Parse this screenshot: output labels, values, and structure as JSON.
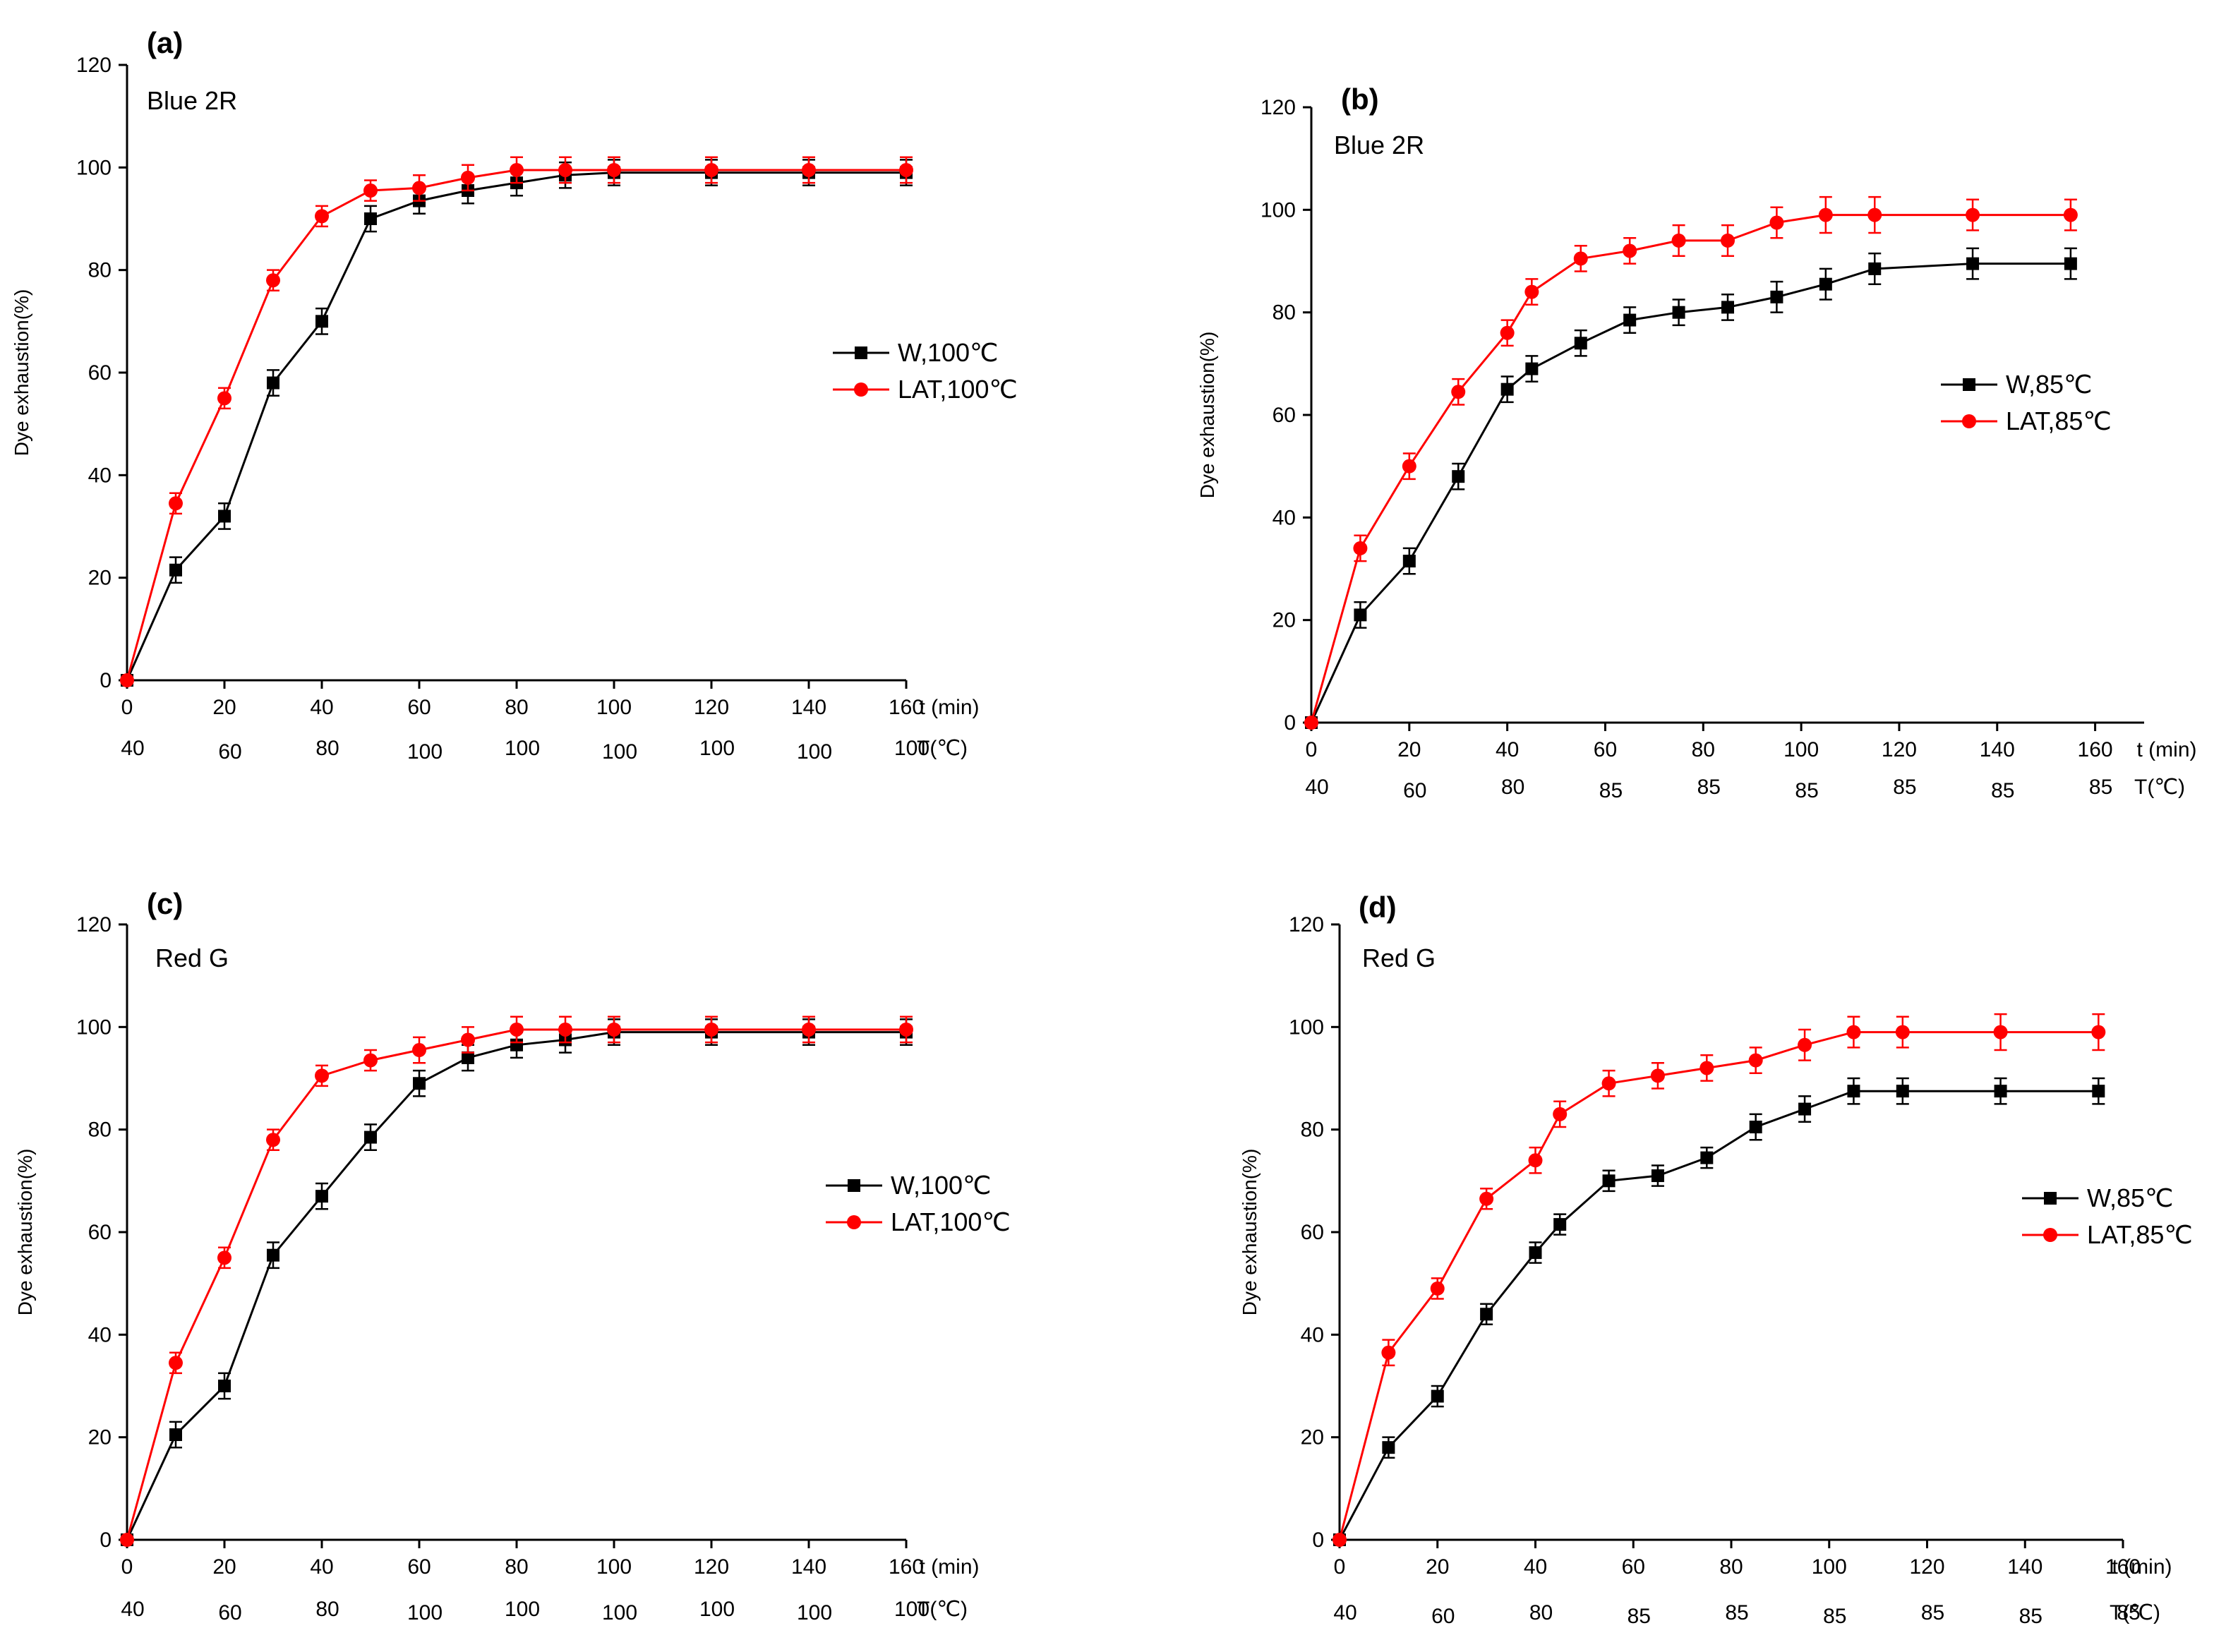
{
  "colors": {
    "W": "#000000",
    "LAT": "#ff0000"
  },
  "chart_data": [
    {
      "type": "line",
      "panel": "(a)",
      "title": "Blue 2R",
      "ylabel": "Dye exhaustion(%)",
      "xlabel": "t (min)",
      "temp_label": "T(℃)",
      "xlim": [
        0,
        160
      ],
      "ylim": [
        0,
        120
      ],
      "xticks": [
        0,
        20,
        40,
        60,
        80,
        100,
        120,
        140,
        160
      ],
      "yticks": [
        0,
        20,
        40,
        60,
        80,
        100,
        120
      ],
      "temp_row": [
        {
          "t": 0,
          "label": "40"
        },
        {
          "t": 20,
          "label": "60"
        },
        {
          "t": 40,
          "label": "80"
        },
        {
          "t": 60,
          "label": "100"
        },
        {
          "t": 80,
          "label": "100"
        },
        {
          "t": 100,
          "label": "100"
        },
        {
          "t": 120,
          "label": "100"
        },
        {
          "t": 140,
          "label": "100"
        },
        {
          "t": 160,
          "label": "100"
        }
      ],
      "legend_position": "right-middle",
      "series": [
        {
          "name": "W,100℃",
          "key": "W",
          "x": [
            0,
            10,
            20,
            30,
            40,
            50,
            60,
            70,
            80,
            90,
            100,
            120,
            140,
            160
          ],
          "y": [
            0,
            21.5,
            32,
            58,
            70,
            90,
            93.5,
            95.5,
            97,
            98.5,
            99,
            99,
            99,
            99
          ],
          "err": [
            0,
            2.5,
            2.5,
            2.5,
            2.5,
            2.5,
            2.5,
            2.5,
            2.5,
            2.5,
            2.5,
            2.5,
            2.5,
            2.5
          ]
        },
        {
          "name": "LAT,100℃",
          "key": "LAT",
          "x": [
            0,
            10,
            20,
            30,
            40,
            50,
            60,
            70,
            80,
            90,
            100,
            120,
            140,
            160
          ],
          "y": [
            0,
            34.5,
            55,
            78,
            90.5,
            95.5,
            96,
            98,
            99.5,
            99.5,
            99.5,
            99.5,
            99.5,
            99.5
          ],
          "err": [
            0,
            2,
            2,
            2,
            2,
            2,
            2.5,
            2.5,
            2.5,
            2.5,
            2.5,
            2.5,
            2.5,
            2.5
          ]
        }
      ]
    },
    {
      "type": "line",
      "panel": "(b)",
      "title": "Blue 2R",
      "ylabel": "Dye exhaustion(%)",
      "xlabel": "t (min)",
      "temp_label": "T(℃)",
      "xlim": [
        0,
        170
      ],
      "ylim": [
        0,
        120
      ],
      "xticks": [
        0,
        20,
        40,
        60,
        80,
        100,
        120,
        140,
        160
      ],
      "yticks": [
        0,
        20,
        40,
        60,
        80,
        100,
        120
      ],
      "temp_row": [
        {
          "t": 0,
          "label": "40"
        },
        {
          "t": 20,
          "label": "60"
        },
        {
          "t": 40,
          "label": "80"
        },
        {
          "t": 60,
          "label": "85"
        },
        {
          "t": 80,
          "label": "85"
        },
        {
          "t": 100,
          "label": "85"
        },
        {
          "t": 120,
          "label": "85"
        },
        {
          "t": 140,
          "label": "85"
        },
        {
          "t": 160,
          "label": "85"
        }
      ],
      "legend_position": "right-middle",
      "series": [
        {
          "name": "W,85℃",
          "key": "W",
          "x": [
            0,
            10,
            20,
            30,
            40,
            45,
            55,
            65,
            75,
            85,
            95,
            105,
            115,
            135,
            155
          ],
          "y": [
            0,
            21,
            31.5,
            48,
            65,
            69,
            74,
            78.5,
            80,
            81,
            83,
            85.5,
            88.5,
            89.5,
            89.5
          ],
          "err": [
            0,
            2.5,
            2.5,
            2.5,
            2.5,
            2.5,
            2.5,
            2.5,
            2.5,
            2.5,
            3,
            3,
            3,
            3,
            3
          ]
        },
        {
          "name": "LAT,85℃",
          "key": "LAT",
          "x": [
            0,
            10,
            20,
            30,
            40,
            45,
            55,
            65,
            75,
            85,
            95,
            105,
            115,
            135,
            155
          ],
          "y": [
            0,
            34,
            50,
            64.5,
            76,
            84,
            90.5,
            92,
            94,
            94,
            97.5,
            99,
            99,
            99,
            99
          ],
          "err": [
            0,
            2.5,
            2.5,
            2.5,
            2.5,
            2.5,
            2.5,
            2.5,
            3,
            3,
            3,
            3.5,
            3.5,
            3,
            3
          ]
        }
      ]
    },
    {
      "type": "line",
      "panel": "(c)",
      "title": "Red G",
      "ylabel": "Dye exhaustion(%)",
      "xlabel": "t (min)",
      "temp_label": "T(℃)",
      "xlim": [
        0,
        160
      ],
      "ylim": [
        0,
        120
      ],
      "xticks": [
        0,
        20,
        40,
        60,
        80,
        100,
        120,
        140,
        160
      ],
      "yticks": [
        0,
        20,
        40,
        60,
        80,
        100,
        120
      ],
      "temp_row": [
        {
          "t": 0,
          "label": "40"
        },
        {
          "t": 20,
          "label": "60"
        },
        {
          "t": 40,
          "label": "80"
        },
        {
          "t": 60,
          "label": "100"
        },
        {
          "t": 80,
          "label": "100"
        },
        {
          "t": 100,
          "label": "100"
        },
        {
          "t": 120,
          "label": "100"
        },
        {
          "t": 140,
          "label": "100"
        },
        {
          "t": 160,
          "label": "100"
        }
      ],
      "legend_position": "right-middle",
      "series": [
        {
          "name": "W,100℃",
          "key": "W",
          "x": [
            0,
            10,
            20,
            30,
            40,
            50,
            60,
            70,
            80,
            90,
            100,
            120,
            140,
            160
          ],
          "y": [
            0,
            20.5,
            30,
            55.5,
            67,
            78.5,
            89,
            94,
            96.5,
            97.5,
            99,
            99,
            99,
            99
          ],
          "err": [
            0,
            2.5,
            2.5,
            2.5,
            2.5,
            2.5,
            2.5,
            2.5,
            2.5,
            2.5,
            2.5,
            2.5,
            2.5,
            2.5
          ]
        },
        {
          "name": "LAT,100℃",
          "key": "LAT",
          "x": [
            0,
            10,
            20,
            30,
            40,
            50,
            60,
            70,
            80,
            90,
            100,
            120,
            140,
            160
          ],
          "y": [
            0,
            34.5,
            55,
            78,
            90.5,
            93.5,
            95.5,
            97.5,
            99.5,
            99.5,
            99.5,
            99.5,
            99.5,
            99.5
          ],
          "err": [
            0,
            2,
            2,
            2,
            2,
            2,
            2.5,
            2.5,
            2.5,
            2.5,
            2.5,
            2.5,
            2.5,
            2.5
          ]
        }
      ]
    },
    {
      "type": "line",
      "panel": "(d)",
      "title": "Red G",
      "ylabel": "Dye exhaustion(%)",
      "xlabel": "t (min)",
      "temp_label": "T(℃)",
      "xlim": [
        0,
        160
      ],
      "ylim": [
        0,
        120
      ],
      "xticks": [
        0,
        20,
        40,
        60,
        80,
        100,
        120,
        140,
        160
      ],
      "yticks": [
        0,
        20,
        40,
        60,
        80,
        100,
        120
      ],
      "temp_row": [
        {
          "t": 0,
          "label": "40"
        },
        {
          "t": 20,
          "label": "60"
        },
        {
          "t": 40,
          "label": "80"
        },
        {
          "t": 60,
          "label": "85"
        },
        {
          "t": 80,
          "label": "85"
        },
        {
          "t": 100,
          "label": "85"
        },
        {
          "t": 120,
          "label": "85"
        },
        {
          "t": 140,
          "label": "85"
        },
        {
          "t": 160,
          "label": "85"
        }
      ],
      "legend_position": "right-middle",
      "series": [
        {
          "name": "W,85℃",
          "key": "W",
          "x": [
            0,
            10,
            20,
            30,
            40,
            45,
            55,
            65,
            75,
            85,
            95,
            105,
            115,
            135,
            155
          ],
          "y": [
            0,
            18,
            28,
            44,
            56,
            61.5,
            70,
            71,
            74.5,
            80.5,
            84,
            87.5,
            87.5,
            87.5,
            87.5
          ],
          "err": [
            0,
            2,
            2,
            2,
            2,
            2,
            2,
            2,
            2,
            2.5,
            2.5,
            2.5,
            2.5,
            2.5,
            2.5
          ]
        },
        {
          "name": "LAT,85℃",
          "key": "LAT",
          "x": [
            0,
            10,
            20,
            30,
            40,
            45,
            55,
            65,
            75,
            85,
            95,
            105,
            115,
            135,
            155
          ],
          "y": [
            0,
            36.5,
            49,
            66.5,
            74,
            83,
            89,
            90.5,
            92,
            93.5,
            96.5,
            99,
            99,
            99,
            99
          ],
          "err": [
            0,
            2.5,
            2,
            2,
            2.5,
            2.5,
            2.5,
            2.5,
            2.5,
            2.5,
            3,
            3,
            3,
            3.5,
            3.5
          ]
        }
      ]
    }
  ]
}
